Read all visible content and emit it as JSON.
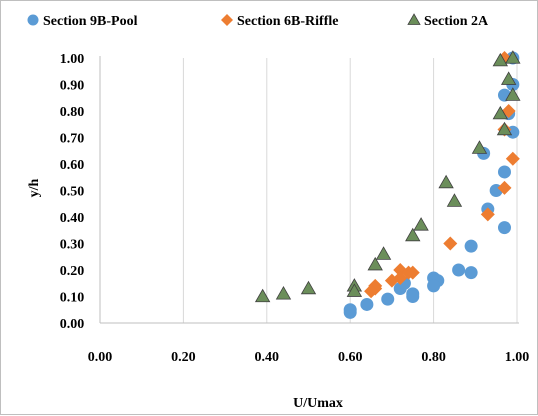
{
  "chart_data": {
    "type": "scatter",
    "xlabel": "U/Umax",
    "ylabel": "y/h",
    "xlim": [
      0,
      1.0
    ],
    "ylim": [
      0,
      1.0
    ],
    "x_ticks": [
      "0.00",
      "0.20",
      "0.40",
      "0.60",
      "0.80",
      "1.00"
    ],
    "y_ticks": [
      "0.00",
      "0.10",
      "0.20",
      "0.30",
      "0.40",
      "0.50",
      "0.60",
      "0.70",
      "0.80",
      "0.90",
      "1.00"
    ],
    "grid": "vertical",
    "legend_position": "top",
    "series": [
      {
        "name": "Section 9B-Pool",
        "marker": "circle",
        "color": "#5b9bd5",
        "points": [
          [
            0.99,
            1.0
          ],
          [
            0.99,
            0.9
          ],
          [
            0.97,
            0.86
          ],
          [
            0.98,
            0.79
          ],
          [
            0.99,
            0.72
          ],
          [
            0.92,
            0.64
          ],
          [
            0.95,
            0.5
          ],
          [
            0.97,
            0.57
          ],
          [
            0.93,
            0.43
          ],
          [
            0.97,
            0.36
          ],
          [
            0.89,
            0.29
          ],
          [
            0.86,
            0.2
          ],
          [
            0.89,
            0.19
          ],
          [
            0.8,
            0.17
          ],
          [
            0.81,
            0.16
          ],
          [
            0.8,
            0.14
          ],
          [
            0.72,
            0.13
          ],
          [
            0.75,
            0.11
          ],
          [
            0.75,
            0.1
          ],
          [
            0.69,
            0.09
          ],
          [
            0.64,
            0.07
          ],
          [
            0.6,
            0.05
          ],
          [
            0.6,
            0.04
          ],
          [
            0.73,
            0.15
          ]
        ]
      },
      {
        "name": "Section 6B-Riffle",
        "marker": "diamond",
        "color": "#ed7d31",
        "points": [
          [
            0.97,
            1.0
          ],
          [
            0.98,
            0.8
          ],
          [
            0.97,
            0.73
          ],
          [
            0.99,
            0.62
          ],
          [
            0.97,
            0.51
          ],
          [
            0.93,
            0.41
          ],
          [
            0.84,
            0.3
          ],
          [
            0.72,
            0.2
          ],
          [
            0.74,
            0.19
          ],
          [
            0.72,
            0.17
          ],
          [
            0.7,
            0.16
          ],
          [
            0.66,
            0.14
          ],
          [
            0.66,
            0.13
          ],
          [
            0.65,
            0.12
          ],
          [
            0.75,
            0.19
          ]
        ]
      },
      {
        "name": "Section 2A",
        "marker": "triangle",
        "color": "#6b8e5a",
        "points": [
          [
            0.96,
            0.99
          ],
          [
            0.99,
            1.0
          ],
          [
            0.98,
            0.92
          ],
          [
            0.99,
            0.86
          ],
          [
            0.96,
            0.79
          ],
          [
            0.97,
            0.73
          ],
          [
            0.91,
            0.66
          ],
          [
            0.83,
            0.53
          ],
          [
            0.85,
            0.46
          ],
          [
            0.77,
            0.37
          ],
          [
            0.75,
            0.33
          ],
          [
            0.68,
            0.26
          ],
          [
            0.66,
            0.22
          ],
          [
            0.61,
            0.14
          ],
          [
            0.61,
            0.12
          ],
          [
            0.5,
            0.13
          ],
          [
            0.44,
            0.11
          ],
          [
            0.39,
            0.1
          ]
        ]
      }
    ]
  }
}
